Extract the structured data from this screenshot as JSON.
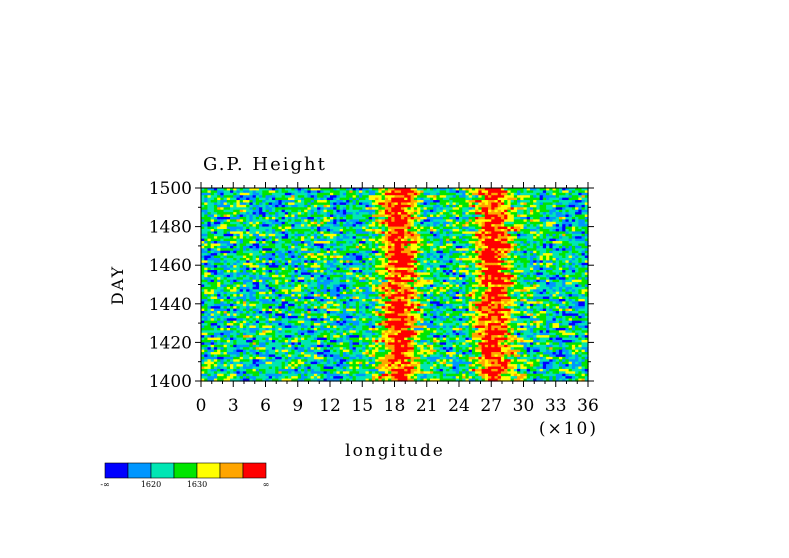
{
  "chart_data": {
    "type": "heatmap",
    "title": "G.P. Height",
    "xlabel": "longitude",
    "ylabel": "DAY",
    "x_multiplier_label": "(×10)",
    "xlim": [
      0,
      36
    ],
    "ylim": [
      1400,
      1500
    ],
    "x_ticks": [
      0,
      3,
      6,
      9,
      12,
      15,
      18,
      21,
      24,
      27,
      30,
      33,
      36
    ],
    "y_ticks": [
      1400,
      1420,
      1440,
      1460,
      1480,
      1500
    ],
    "high_value_bands": [
      {
        "x_center": 18.5,
        "width": 2.5
      },
      {
        "x_center": 27.2,
        "width": 2.5
      }
    ],
    "colorbar": {
      "colors": [
        "#0000ff",
        "#0096ff",
        "#00e6b4",
        "#00e600",
        "#ffff00",
        "#ffa500",
        "#ff0000"
      ],
      "labels": [
        "-∞",
        "",
        "1620",
        "",
        "1630",
        "",
        "",
        "∞"
      ],
      "placement": "bottom-left"
    }
  }
}
